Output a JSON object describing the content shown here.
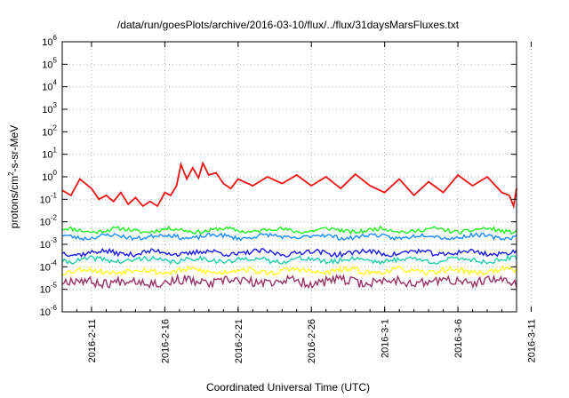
{
  "chart_data": {
    "type": "line",
    "title": "/data/run/goesPlots/archive/2016-03-10/flux/../flux/31daysMarsFluxes.txt",
    "xlabel": "Coordinated Universal Time (UTC)",
    "ylabel_parts": [
      "protons/cm",
      "2",
      "-s-sr-MeV"
    ],
    "yscale": "log",
    "ylim_exp": [
      -6,
      6
    ],
    "ytick_exponents": [
      -6,
      -5,
      -4,
      -3,
      -2,
      -1,
      0,
      1,
      2,
      3,
      4,
      5,
      6
    ],
    "xlim_days": [
      "2016-02-09",
      "2016-03-11"
    ],
    "xtick_labels": [
      "2016-2-11",
      "2016-2-16",
      "2016-2-21",
      "2016-2-26",
      "2016-3-1",
      "2016-3-6",
      "2016-3-11"
    ],
    "grid": true,
    "series": [
      {
        "color": "#ee1111",
        "points": [
          [
            "2016-02-09",
            0.25
          ],
          [
            "2016-02-09.6",
            0.15
          ],
          [
            "2016-02-10.2",
            0.8
          ],
          [
            "2016-02-11",
            0.3
          ],
          [
            "2016-02-11.5",
            0.1
          ],
          [
            "2016-02-12",
            0.15
          ],
          [
            "2016-02-12.5",
            0.08
          ],
          [
            "2016-02-13",
            0.2
          ],
          [
            "2016-02-13.5",
            0.06
          ],
          [
            "2016-02-14",
            0.12
          ],
          [
            "2016-02-14.5",
            0.05
          ],
          [
            "2016-02-15",
            0.08
          ],
          [
            "2016-02-15.5",
            0.05
          ],
          [
            "2016-02-16",
            0.2
          ],
          [
            "2016-02-16.4",
            0.15
          ],
          [
            "2016-02-16.8",
            0.4
          ],
          [
            "2016-02-17.1",
            3.5
          ],
          [
            "2016-02-17.5",
            0.8
          ],
          [
            "2016-02-17.9",
            2.5
          ],
          [
            "2016-02-18.3",
            0.9
          ],
          [
            "2016-02-18.6",
            4.0
          ],
          [
            "2016-02-19",
            1.2
          ],
          [
            "2016-02-19.5",
            1.5
          ],
          [
            "2016-02-20",
            0.5
          ],
          [
            "2016-02-20.5",
            0.3
          ],
          [
            "2016-02-21",
            0.8
          ],
          [
            "2016-02-22",
            0.4
          ],
          [
            "2016-02-23",
            1.0
          ],
          [
            "2016-02-24",
            0.5
          ],
          [
            "2016-02-25",
            1.2
          ],
          [
            "2016-02-26",
            0.4
          ],
          [
            "2016-02-27",
            1.0
          ],
          [
            "2016-02-28",
            0.3
          ],
          [
            "2016-02-29",
            1.3
          ],
          [
            "2016-03-01",
            0.4
          ],
          [
            "2016-03-02",
            0.2
          ],
          [
            "2016-03-03",
            0.8
          ],
          [
            "2016-03-04",
            0.15
          ],
          [
            "2016-03-05",
            0.6
          ],
          [
            "2016-03-06",
            0.2
          ],
          [
            "2016-03-07",
            1.2
          ],
          [
            "2016-03-08",
            0.4
          ],
          [
            "2016-03-09",
            1.0
          ],
          [
            "2016-03-10",
            0.2
          ],
          [
            "2016-03-10.5",
            0.15
          ],
          [
            "2016-03-10.8",
            0.05
          ],
          [
            "2016-03-11",
            0.3
          ]
        ]
      },
      {
        "color": "#22ee22",
        "level": 0.0042,
        "jitter": 0.18,
        "seed": 11
      },
      {
        "color": "#1a8cff",
        "level": 0.0022,
        "jitter": 0.18,
        "seed": 23
      },
      {
        "color": "#1a1aee",
        "level": 0.00042,
        "jitter": 0.22,
        "seed": 37
      },
      {
        "color": "#22ccaa",
        "level": 0.0002,
        "jitter": 0.22,
        "seed": 41
      },
      {
        "color": "#ffff22",
        "level": 6.5e-05,
        "jitter": 0.25,
        "seed": 53
      },
      {
        "color": "#993366",
        "level": 2.2e-05,
        "jitter": 0.42,
        "seed": 67
      }
    ]
  }
}
